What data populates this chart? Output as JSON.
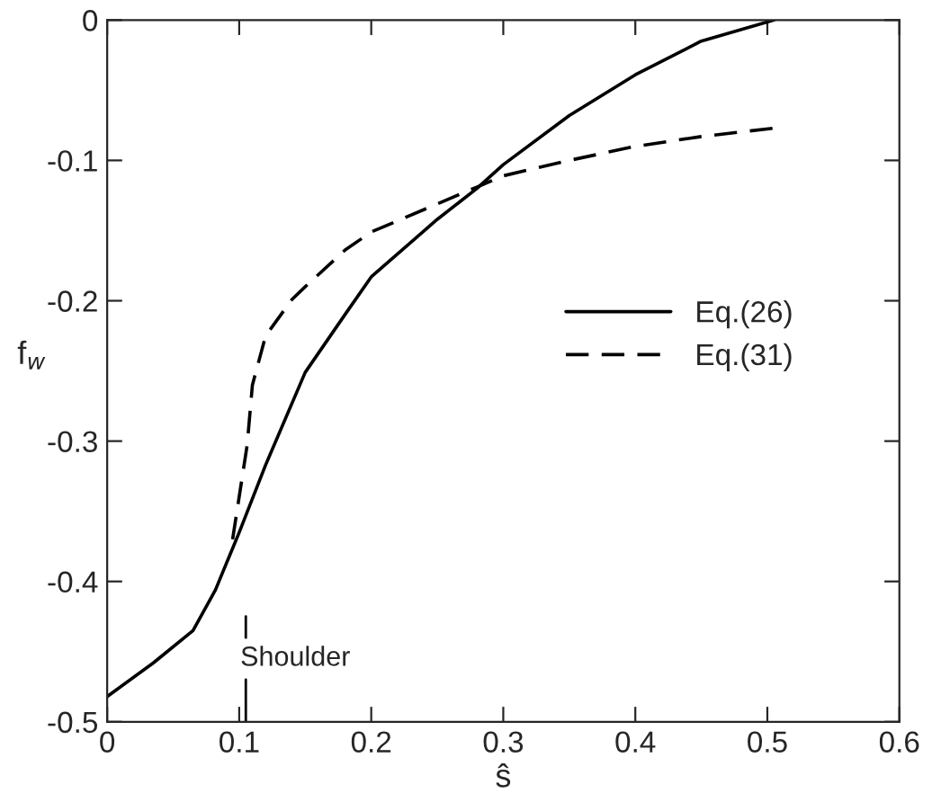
{
  "chart_data": {
    "type": "line",
    "xlabel": "ŝ",
    "ylabel": "f$_{w}$",
    "xlim": [
      0,
      0.6
    ],
    "ylim": [
      -0.5,
      0
    ],
    "xticks": [
      0,
      0.1,
      0.2,
      0.3,
      0.4,
      0.5,
      0.6
    ],
    "yticks": [
      {
        "value": -0.5,
        "label": "-0.5"
      },
      {
        "value": -0.4,
        "label": "-0.4"
      },
      {
        "value": -0.3,
        "label": "-0.3"
      },
      {
        "value": -0.2,
        "label": "-0.2"
      },
      {
        "value": -0.1,
        "label": "-0.1"
      },
      0
    ],
    "grid": false,
    "legend": "right",
    "annotations": [
      "Shoulder"
    ],
    "series": [
      {
        "name": "Eq.(26)",
        "color": "#000000",
        "line_style": "solid",
        "x": [
          0,
          0.035,
          0.065,
          0.082,
          0.1,
          0.12,
          0.15,
          0.18,
          0.2,
          0.25,
          0.28,
          0.3,
          0.35,
          0.4,
          0.45,
          0.505
        ],
        "values": [
          -0.482,
          -0.458,
          -0.435,
          -0.406,
          -0.365,
          -0.317,
          -0.251,
          -0.21,
          -0.183,
          -0.142,
          -0.12,
          -0.103,
          -0.068,
          -0.039,
          -0.015,
          0
        ]
      },
      {
        "name": "Eq.(31)",
        "color": "#000000",
        "line_style": "dashed",
        "x": [
          0.095,
          0.106,
          0.11,
          0.12,
          0.14,
          0.15,
          0.18,
          0.2,
          0.25,
          0.28,
          0.3,
          0.35,
          0.4,
          0.45,
          0.505
        ],
        "values": [
          -0.37,
          -0.303,
          -0.26,
          -0.225,
          -0.199,
          -0.19,
          -0.164,
          -0.151,
          -0.131,
          -0.119,
          -0.111,
          -0.1,
          -0.09,
          -0.083,
          -0.077
        ]
      }
    ]
  }
}
